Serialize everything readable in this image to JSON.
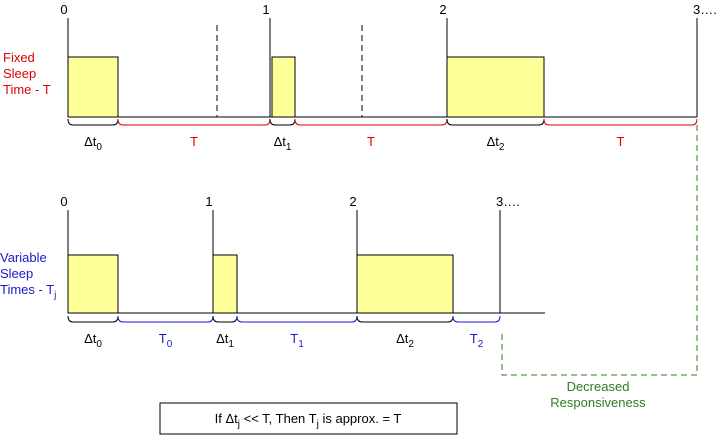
{
  "top": {
    "label": [
      "Fixed",
      "Sleep",
      "Time - T"
    ],
    "ticks": [
      "0",
      "1",
      "2",
      "3…."
    ],
    "intervals": [
      {
        "base": "Δt",
        "sub": "0"
      },
      {
        "base": "T"
      },
      {
        "base": "Δt",
        "sub": "1"
      },
      {
        "base": "T"
      },
      {
        "base": "Δt",
        "sub": "2"
      },
      {
        "base": "T"
      }
    ]
  },
  "bottom": {
    "label": [
      {
        "base": "Variable"
      },
      {
        "base": "Sleep"
      },
      {
        "base": "Times - T",
        "sub": "j"
      }
    ],
    "ticks": [
      "0",
      "1",
      "2",
      "3…."
    ],
    "intervals": [
      {
        "base": "Δt",
        "sub": "0"
      },
      {
        "base": "T",
        "sub": "0"
      },
      {
        "base": "Δt",
        "sub": "1"
      },
      {
        "base": "T",
        "sub": "1"
      },
      {
        "base": "Δt",
        "sub": "2"
      },
      {
        "base": "T",
        "sub": "2"
      }
    ]
  },
  "annotation": [
    "Decreased",
    "Responsiveness"
  ],
  "footnote": [
    {
      "text": "If Δt"
    },
    {
      "text": "j",
      "sub": true
    },
    {
      "text": " << T, Then T"
    },
    {
      "text": "j",
      "sub": true
    },
    {
      "text": " is approx. = T"
    }
  ]
}
